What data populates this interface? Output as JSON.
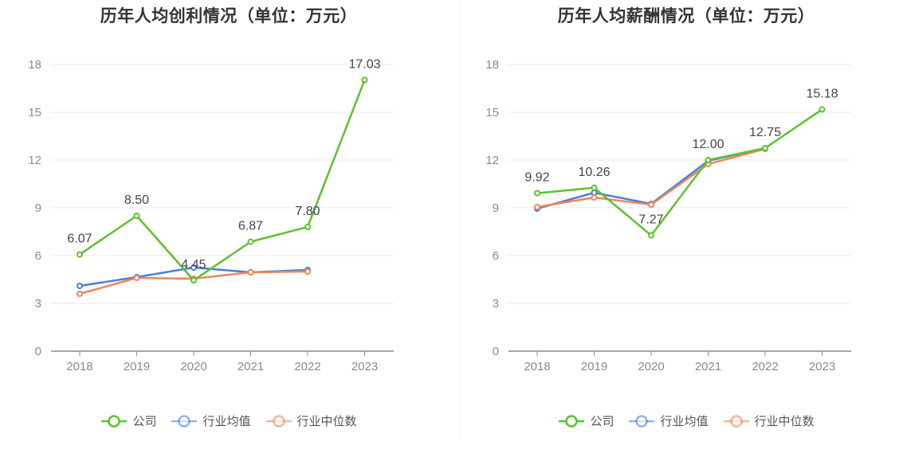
{
  "charts": [
    {
      "title": "历年人均创利情况（单位：万元）",
      "chart_data": {
        "type": "line",
        "categories": [
          "2018",
          "2019",
          "2020",
          "2021",
          "2022",
          "2023"
        ],
        "ylim": [
          0,
          18
        ],
        "yticks": [
          0,
          3,
          6,
          9,
          12,
          15,
          18
        ],
        "grid": true,
        "legend": "bottom-center",
        "series": [
          {
            "name": "公司",
            "color": "#5cc22c",
            "values": [
              6.07,
              8.5,
              4.45,
              6.87,
              7.8,
              17.03
            ],
            "labels": [
              "6.07",
              "8.50",
              "4.45",
              "6.87",
              "7.80",
              "17.03"
            ]
          },
          {
            "name": "行业均值",
            "color": "#4a7fe0",
            "values": [
              4.1,
              4.65,
              5.25,
              4.95,
              5.1,
              null
            ]
          },
          {
            "name": "行业中位数",
            "color": "#f0845a",
            "values": [
              3.6,
              4.6,
              4.55,
              4.95,
              5.0,
              null
            ]
          }
        ]
      }
    },
    {
      "title": "历年人均薪酬情况（单位：万元）",
      "chart_data": {
        "type": "line",
        "categories": [
          "2018",
          "2019",
          "2020",
          "2021",
          "2022",
          "2023"
        ],
        "ylim": [
          0,
          18
        ],
        "yticks": [
          0,
          3,
          6,
          9,
          12,
          15,
          18
        ],
        "grid": true,
        "legend": "bottom-center",
        "series": [
          {
            "name": "公司",
            "color": "#5cc22c",
            "values": [
              9.92,
              10.26,
              7.27,
              12.0,
              12.75,
              15.18
            ],
            "labels": [
              "9.92",
              "10.26",
              "7.27",
              "12.00",
              "12.75",
              "15.18"
            ]
          },
          {
            "name": "行业均值",
            "color": "#4a7fe0",
            "values": [
              8.95,
              9.95,
              9.25,
              11.95,
              12.75,
              null
            ]
          },
          {
            "name": "行业中位数",
            "color": "#f0845a",
            "values": [
              9.05,
              9.65,
              9.2,
              11.75,
              12.7,
              null
            ]
          }
        ]
      }
    }
  ]
}
